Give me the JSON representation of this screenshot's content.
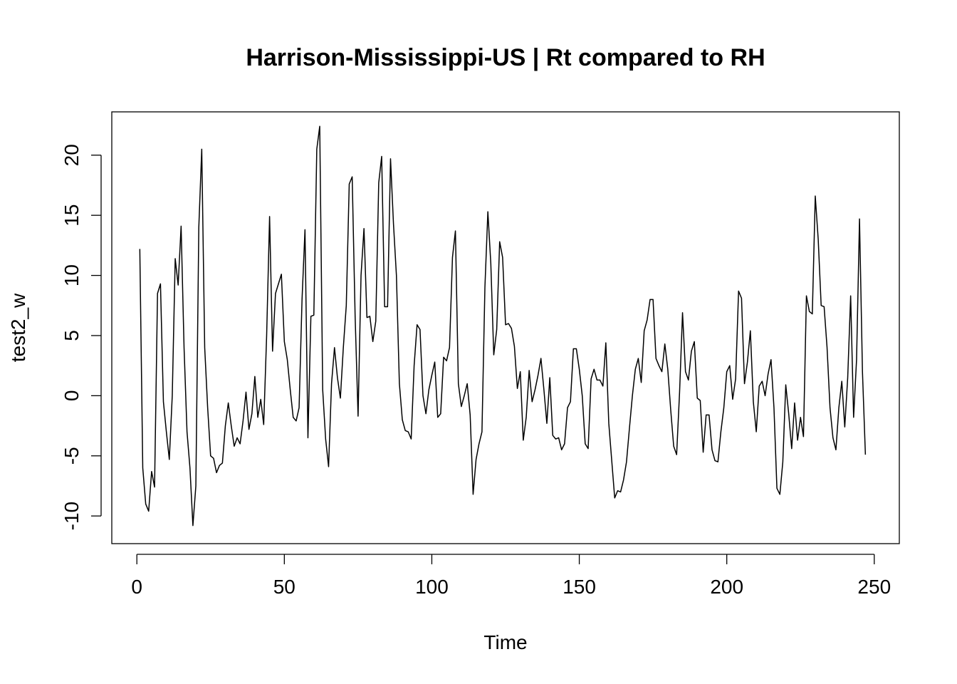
{
  "chart_data": {
    "type": "line",
    "title": "Harrison-Mississippi-US | Rt compared to RH",
    "xlabel": "Time",
    "ylabel": "test2_w",
    "xlim": [
      -8.5,
      258.5
    ],
    "ylim": [
      -12.3,
      23.6
    ],
    "x_ticks": [
      {
        "value": 0,
        "label": "0"
      },
      {
        "value": 50,
        "label": "50"
      },
      {
        "value": 100,
        "label": "100"
      },
      {
        "value": 150,
        "label": "150"
      },
      {
        "value": 200,
        "label": "200"
      },
      {
        "value": 250,
        "label": "250"
      }
    ],
    "y_ticks": [
      {
        "value": -10,
        "label": "-10"
      },
      {
        "value": -5,
        "label": "-5"
      },
      {
        "value": 0,
        "label": "0"
      },
      {
        "value": 5,
        "label": "5"
      },
      {
        "value": 10,
        "label": "10"
      },
      {
        "value": 15,
        "label": "15"
      },
      {
        "value": 20,
        "label": "20"
      }
    ],
    "grid": false,
    "line_color": "#000000",
    "series": [
      {
        "x_start": 1,
        "x_step": 1,
        "values": [
          12.2,
          -6.0,
          -9.0,
          -9.6,
          -6.3,
          -7.6,
          8.5,
          9.3,
          -0.5,
          -3.0,
          -5.3,
          0.0,
          11.4,
          9.2,
          14.1,
          4.0,
          -3.0,
          -6.0,
          -10.8,
          -7.5,
          14.0,
          20.5,
          4.0,
          -1.0,
          -5.0,
          -5.2,
          -6.4,
          -5.8,
          -5.6,
          -2.5,
          -0.6,
          -2.5,
          -4.2,
          -3.5,
          -4.0,
          -2.1,
          0.3,
          -2.8,
          -1.5,
          1.6,
          -1.8,
          -0.3,
          -2.4,
          5.0,
          14.9,
          3.7,
          8.5,
          9.3,
          10.1,
          4.5,
          3.0,
          0.5,
          -1.8,
          -2.1,
          -1.0,
          8.0,
          13.8,
          -3.5,
          6.6,
          6.7,
          20.5,
          22.4,
          0.5,
          -3.6,
          -5.9,
          1.0,
          4.0,
          1.5,
          -0.2,
          4.0,
          7.5,
          17.6,
          18.2,
          6.6,
          -1.7,
          10.0,
          13.9,
          6.5,
          6.6,
          4.5,
          6.2,
          17.7,
          19.9,
          7.4,
          7.4,
          19.7,
          14.3,
          10.0,
          1.0,
          -2.0,
          -2.9,
          -3.0,
          -3.6,
          2.5,
          5.9,
          5.5,
          0.0,
          -1.5,
          0.5,
          1.7,
          2.8,
          -1.8,
          -1.5,
          3.2,
          2.9,
          4.0,
          11.5,
          13.7,
          1.0,
          -0.9,
          0.0,
          1.0,
          -1.6,
          -8.2,
          -5.3,
          -4.0,
          -3.0,
          9.0,
          15.3,
          11.0,
          3.4,
          5.5,
          12.8,
          11.5,
          5.9,
          6.0,
          5.6,
          4.1,
          0.6,
          2.0,
          -3.7,
          -1.8,
          2.1,
          -0.5,
          0.5,
          1.7,
          3.1,
          0.5,
          -2.3,
          1.5,
          -3.3,
          -3.6,
          -3.5,
          -4.5,
          -4.0,
          -1.0,
          -0.5,
          3.9,
          3.9,
          2.2,
          0.0,
          -4.0,
          -4.4,
          1.4,
          2.2,
          1.3,
          1.3,
          0.8,
          4.4,
          -2.3,
          -5.4,
          -8.5,
          -7.9,
          -8.0,
          -7.0,
          -5.5,
          -2.7,
          0.0,
          2.2,
          3.1,
          1.1,
          5.4,
          6.3,
          8.0,
          8.0,
          3.1,
          2.5,
          2.0,
          4.3,
          2.2,
          -1.2,
          -4.2,
          -4.9,
          0.3,
          6.9,
          2.0,
          1.3,
          3.7,
          4.5,
          -0.2,
          -0.4,
          -4.7,
          -1.6,
          -1.6,
          -4.5,
          -5.4,
          -5.5,
          -3.0,
          -1.0,
          2.0,
          2.5,
          -0.3,
          1.4,
          8.7,
          8.1,
          1.0,
          2.8,
          5.4,
          -0.5,
          -3.0,
          0.8,
          1.2,
          0.0,
          1.8,
          3.0,
          -1.0,
          -7.7,
          -8.2,
          -5.5,
          0.9,
          -1.5,
          -4.4,
          -0.6,
          -3.7,
          -1.8,
          -3.4,
          8.3,
          7.0,
          6.8,
          16.6,
          13.0,
          7.5,
          7.4,
          4.0,
          -1.0,
          -3.5,
          -4.5,
          -1.0,
          1.2,
          -2.6,
          1.5,
          8.3,
          -1.8,
          3.0,
          14.7,
          2.0,
          -4.9
        ]
      }
    ]
  }
}
